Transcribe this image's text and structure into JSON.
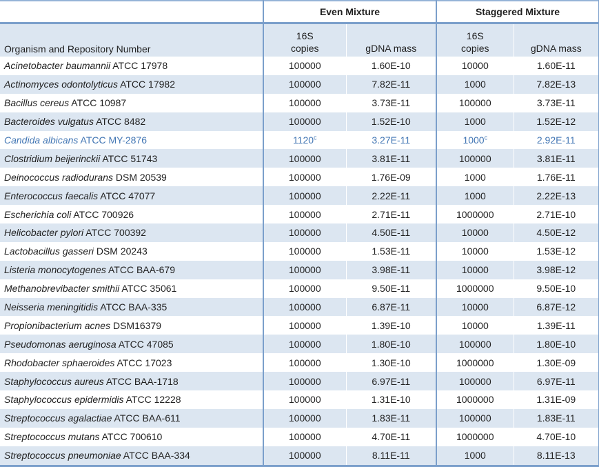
{
  "table": {
    "colors": {
      "stripe": "#dce6f1",
      "border": "#7b9fcb",
      "thin_border": "#95b3d7",
      "text": "#222222",
      "highlight_text": "#4276b4"
    },
    "group_headers": [
      {
        "label": "Even Mixture"
      },
      {
        "label": "Staggered Mixture"
      }
    ],
    "sub_headers": {
      "organism": "Organism and Repository Number",
      "copies_line1": "16S",
      "copies_line2": "copies",
      "gdna": "gDNA mass"
    },
    "rows": [
      {
        "organism_italic": "Acinetobacter baumannii",
        "organism_rest": " ATCC 17978",
        "even_copies": "100000",
        "even_copies_sup": "",
        "even_gdna": "1.60E-10",
        "stag_copies": "10000",
        "stag_copies_sup": "",
        "stag_gdna": "1.60E-11",
        "highlight": false
      },
      {
        "organism_italic": "Actinomyces odontolyticus",
        "organism_rest": " ATCC 17982",
        "even_copies": "100000",
        "even_copies_sup": "",
        "even_gdna": "7.82E-11",
        "stag_copies": "1000",
        "stag_copies_sup": "",
        "stag_gdna": "7.82E-13",
        "highlight": false
      },
      {
        "organism_italic": "Bacillus cereus",
        "organism_rest": " ATCC 10987",
        "even_copies": "100000",
        "even_copies_sup": "",
        "even_gdna": "3.73E-11",
        "stag_copies": "100000",
        "stag_copies_sup": "",
        "stag_gdna": "3.73E-11",
        "highlight": false
      },
      {
        "organism_italic": "Bacteroides vulgatus",
        "organism_rest": " ATCC 8482",
        "even_copies": "100000",
        "even_copies_sup": "",
        "even_gdna": "1.52E-10",
        "stag_copies": "1000",
        "stag_copies_sup": "",
        "stag_gdna": "1.52E-12",
        "highlight": false
      },
      {
        "organism_italic": "Candida albicans",
        "organism_rest": " ATCC MY-2876",
        "even_copies": "1120",
        "even_copies_sup": "c",
        "even_gdna": "3.27E-11",
        "stag_copies": "1000",
        "stag_copies_sup": "c",
        "stag_gdna": "2.92E-11",
        "highlight": true
      },
      {
        "organism_italic": "Clostridium beijerinckii",
        "organism_rest": " ATCC 51743",
        "even_copies": "100000",
        "even_copies_sup": "",
        "even_gdna": "3.81E-11",
        "stag_copies": "100000",
        "stag_copies_sup": "",
        "stag_gdna": "3.81E-11",
        "highlight": false
      },
      {
        "organism_italic": "Deinococcus radiodurans",
        "organism_rest": " DSM 20539",
        "even_copies": "100000",
        "even_copies_sup": "",
        "even_gdna": "1.76E-09",
        "stag_copies": "1000",
        "stag_copies_sup": "",
        "stag_gdna": "1.76E-11",
        "highlight": false
      },
      {
        "organism_italic": "Enterococcus faecalis",
        "organism_rest": " ATCC 47077",
        "even_copies": "100000",
        "even_copies_sup": "",
        "even_gdna": "2.22E-11",
        "stag_copies": "1000",
        "stag_copies_sup": "",
        "stag_gdna": "2.22E-13",
        "highlight": false
      },
      {
        "organism_italic": "Escherichia coli",
        "organism_rest": " ATCC 700926",
        "even_copies": "100000",
        "even_copies_sup": "",
        "even_gdna": "2.71E-11",
        "stag_copies": "1000000",
        "stag_copies_sup": "",
        "stag_gdna": "2.71E-10",
        "highlight": false
      },
      {
        "organism_italic": "Helicobacter pylori",
        "organism_rest": " ATCC 700392",
        "even_copies": "100000",
        "even_copies_sup": "",
        "even_gdna": "4.50E-11",
        "stag_copies": "10000",
        "stag_copies_sup": "",
        "stag_gdna": "4.50E-12",
        "highlight": false
      },
      {
        "organism_italic": "Lactobacillus gasseri",
        "organism_rest": " DSM 20243",
        "even_copies": "100000",
        "even_copies_sup": "",
        "even_gdna": "1.53E-11",
        "stag_copies": "10000",
        "stag_copies_sup": "",
        "stag_gdna": "1.53E-12",
        "highlight": false
      },
      {
        "organism_italic": "Listeria monocytogenes",
        "organism_rest": " ATCC BAA-679",
        "even_copies": "100000",
        "even_copies_sup": "",
        "even_gdna": "3.98E-11",
        "stag_copies": "10000",
        "stag_copies_sup": "",
        "stag_gdna": "3.98E-12",
        "highlight": false
      },
      {
        "organism_italic": "Methanobrevibacter smithii",
        "organism_rest": " ATCC 35061",
        "even_copies": "100000",
        "even_copies_sup": "",
        "even_gdna": "9.50E-11",
        "stag_copies": "1000000",
        "stag_copies_sup": "",
        "stag_gdna": "9.50E-10",
        "highlight": false
      },
      {
        "organism_italic": "Neisseria meningitidis",
        "organism_rest": " ATCC BAA-335",
        "even_copies": "100000",
        "even_copies_sup": "",
        "even_gdna": "6.87E-11",
        "stag_copies": "10000",
        "stag_copies_sup": "",
        "stag_gdna": "6.87E-12",
        "highlight": false
      },
      {
        "organism_italic": "Propionibacterium acnes",
        "organism_rest": " DSM16379",
        "even_copies": "100000",
        "even_copies_sup": "",
        "even_gdna": "1.39E-10",
        "stag_copies": "10000",
        "stag_copies_sup": "",
        "stag_gdna": "1.39E-11",
        "highlight": false
      },
      {
        "organism_italic": "Pseudomonas aeruginosa",
        "organism_rest": " ATCC 47085",
        "even_copies": "100000",
        "even_copies_sup": "",
        "even_gdna": "1.80E-10",
        "stag_copies": "100000",
        "stag_copies_sup": "",
        "stag_gdna": "1.80E-10",
        "highlight": false
      },
      {
        "organism_italic": "Rhodobacter sphaeroides",
        "organism_rest": " ATCC 17023",
        "even_copies": "100000",
        "even_copies_sup": "",
        "even_gdna": "1.30E-10",
        "stag_copies": "1000000",
        "stag_copies_sup": "",
        "stag_gdna": "1.30E-09",
        "highlight": false
      },
      {
        "organism_italic": "Staphylococcus aureus",
        "organism_rest": " ATCC BAA-1718",
        "even_copies": "100000",
        "even_copies_sup": "",
        "even_gdna": "6.97E-11",
        "stag_copies": "100000",
        "stag_copies_sup": "",
        "stag_gdna": "6.97E-11",
        "highlight": false
      },
      {
        "organism_italic": "Staphylococcus epidermidis",
        "organism_rest": " ATCC 12228",
        "even_copies": "100000",
        "even_copies_sup": "",
        "even_gdna": "1.31E-10",
        "stag_copies": "1000000",
        "stag_copies_sup": "",
        "stag_gdna": "1.31E-09",
        "highlight": false
      },
      {
        "organism_italic": "Streptococcus agalactiae",
        "organism_rest": " ATCC BAA-611",
        "even_copies": "100000",
        "even_copies_sup": "",
        "even_gdna": "1.83E-11",
        "stag_copies": "100000",
        "stag_copies_sup": "",
        "stag_gdna": "1.83E-11",
        "highlight": false
      },
      {
        "organism_italic": "Streptococcus mutans",
        "organism_rest": " ATCC 700610",
        "even_copies": "100000",
        "even_copies_sup": "",
        "even_gdna": "4.70E-11",
        "stag_copies": "1000000",
        "stag_copies_sup": "",
        "stag_gdna": "4.70E-10",
        "highlight": false
      },
      {
        "organism_italic": "Streptococcus pneumoniae",
        "organism_rest": " ATCC BAA-334",
        "even_copies": "100000",
        "even_copies_sup": "",
        "even_gdna": "8.11E-11",
        "stag_copies": "1000",
        "stag_copies_sup": "",
        "stag_gdna": "8.11E-13",
        "highlight": false
      }
    ]
  }
}
